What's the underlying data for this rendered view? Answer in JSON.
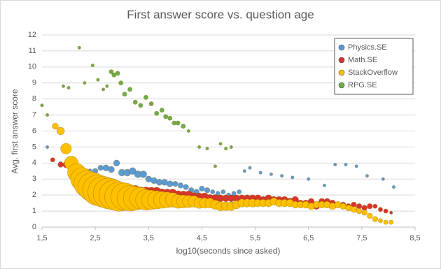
{
  "chart_data": {
    "type": "scatter",
    "title": "First answer score vs. question age",
    "x_label": "log10(seconds since asked)",
    "y_label": "Avg. first answer score",
    "xlim": [
      1.5,
      8.5
    ],
    "xticks": [
      {
        "value": 1.5,
        "label": "1,5"
      },
      {
        "value": 2.5,
        "label": "2,5"
      },
      {
        "value": 3.5,
        "label": "3,5"
      },
      {
        "value": 4.5,
        "label": "4,5"
      },
      {
        "value": 5.5,
        "label": "5,5"
      },
      {
        "value": 6.5,
        "label": "6,5"
      },
      {
        "value": 7.5,
        "label": "7,5"
      },
      {
        "value": 8.5,
        "label": "8,5"
      }
    ],
    "ylim": [
      0,
      12
    ],
    "yticks": [
      0,
      1,
      2,
      3,
      4,
      5,
      6,
      7,
      8,
      9,
      10,
      11,
      12
    ],
    "grid": true,
    "legend": "top-right",
    "series": [
      {
        "name": "Physics.SE",
        "color": "#5b9bd5",
        "x": [
          1.6,
          1.85,
          2.05,
          2.4,
          2.5,
          2.6,
          2.7,
          2.8,
          2.9,
          3.0,
          3.1,
          3.2,
          3.3,
          3.4,
          3.5,
          3.6,
          3.7,
          3.8,
          3.9,
          4.0,
          4.1,
          4.2,
          4.3,
          4.4,
          4.5,
          4.6,
          4.7,
          4.8,
          4.9,
          5.0,
          5.1,
          5.2,
          5.3,
          5.4,
          5.6,
          5.8,
          6.0,
          6.2,
          6.5,
          6.8,
          7.0,
          7.2,
          7.4,
          7.6,
          7.9,
          8.1
        ],
        "values": [
          5.0,
          4.0,
          3.7,
          3.5,
          3.5,
          3.7,
          3.7,
          3.6,
          4.0,
          3.4,
          3.4,
          3.5,
          3.3,
          3.3,
          3.0,
          2.9,
          2.8,
          2.8,
          2.7,
          2.7,
          2.6,
          2.5,
          2.3,
          2.2,
          2.4,
          2.3,
          2.2,
          2.1,
          2.2,
          2.0,
          2.1,
          2.2,
          3.5,
          3.7,
          3.4,
          3.3,
          3.2,
          3.1,
          3.0,
          2.6,
          3.9,
          3.9,
          3.8,
          3.2,
          3.0,
          2.5
        ],
        "sizes": [
          1,
          1,
          2,
          2,
          3,
          3,
          4,
          4,
          4,
          5,
          5,
          5,
          5,
          5,
          4,
          4,
          4,
          4,
          4,
          3,
          3,
          3,
          3,
          3,
          3,
          3,
          2,
          2,
          2,
          2,
          2,
          2,
          1,
          1,
          1,
          1,
          1,
          1,
          1,
          1,
          1,
          1,
          1,
          1,
          1,
          1
        ]
      },
      {
        "name": "Math.SE",
        "color": "#d9342b",
        "x": [
          1.7,
          1.85,
          1.95,
          2.05,
          2.15,
          2.25,
          2.35,
          2.45,
          2.55,
          2.65,
          2.75,
          2.85,
          2.95,
          3.05,
          3.15,
          3.25,
          3.35,
          3.45,
          3.55,
          3.65,
          3.75,
          3.85,
          3.95,
          4.05,
          4.15,
          4.25,
          4.35,
          4.45,
          4.55,
          4.65,
          4.75,
          4.85,
          4.95,
          5.05,
          5.15,
          5.25,
          5.35,
          5.45,
          5.55,
          5.65,
          5.75,
          5.85,
          5.95,
          6.05,
          6.15,
          6.25,
          6.35,
          6.45,
          6.55,
          6.65,
          6.75,
          6.85,
          6.95,
          7.05,
          7.15,
          7.25,
          7.35,
          7.45,
          7.55,
          7.65,
          7.75,
          7.85,
          7.95,
          8.05
        ],
        "values": [
          4.2,
          3.9,
          3.9,
          4.0,
          3.0,
          2.9,
          2.8,
          2.7,
          2.6,
          2.5,
          2.5,
          2.4,
          2.4,
          2.3,
          2.3,
          2.3,
          2.2,
          2.2,
          2.2,
          2.2,
          2.1,
          2.1,
          2.1,
          2.0,
          2.0,
          2.0,
          1.9,
          1.9,
          1.9,
          1.8,
          1.8,
          1.8,
          1.8,
          1.8,
          1.8,
          1.8,
          1.8,
          1.8,
          1.8,
          1.7,
          1.8,
          1.7,
          1.7,
          1.7,
          1.6,
          1.7,
          1.5,
          1.5,
          1.6,
          1.3,
          1.6,
          1.6,
          1.5,
          1.4,
          1.4,
          1.3,
          1.4,
          1.3,
          1.2,
          1.3,
          1.3,
          1.1,
          1.0,
          0.9
        ],
        "sizes": [
          2,
          3,
          4,
          5,
          7,
          9,
          10,
          11,
          12,
          12,
          12,
          12,
          12,
          11,
          11,
          10,
          10,
          10,
          9,
          9,
          9,
          8,
          8,
          8,
          7,
          7,
          7,
          6,
          6,
          6,
          6,
          5,
          5,
          5,
          5,
          5,
          5,
          5,
          5,
          5,
          5,
          5,
          5,
          5,
          5,
          5,
          4,
          4,
          4,
          4,
          4,
          4,
          4,
          4,
          3,
          3,
          3,
          3,
          3,
          3,
          2,
          2,
          2,
          1
        ]
      },
      {
        "name": "StackOverflow",
        "color": "#ffc000",
        "x": [
          1.75,
          1.85,
          1.95,
          2.05,
          2.15,
          2.25,
          2.35,
          2.45,
          2.55,
          2.65,
          2.75,
          2.85,
          2.95,
          3.05,
          3.15,
          3.25,
          3.35,
          3.45,
          3.55,
          3.65,
          3.75,
          3.85,
          3.95,
          4.05,
          4.15,
          4.25,
          4.35,
          4.45,
          4.55,
          4.65,
          4.75,
          4.85,
          4.95,
          5.05,
          5.15,
          5.25,
          5.35,
          5.45,
          5.55,
          5.65,
          5.75,
          5.85,
          5.95,
          6.05,
          6.15,
          6.25,
          6.35,
          6.45,
          6.55,
          6.65,
          6.75,
          6.85,
          6.95,
          7.05,
          7.15,
          7.25,
          7.35,
          7.45,
          7.55,
          7.65,
          7.75,
          7.85,
          7.95,
          8.05
        ],
        "values": [
          6.3,
          6.0,
          4.9,
          4.0,
          3.4,
          3.0,
          2.7,
          2.5,
          2.3,
          2.2,
          2.1,
          2.0,
          1.9,
          1.9,
          1.8,
          1.8,
          1.8,
          1.7,
          1.7,
          1.7,
          1.7,
          1.7,
          1.7,
          1.6,
          1.6,
          1.6,
          1.6,
          1.5,
          1.5,
          1.5,
          1.4,
          1.3,
          1.3,
          1.3,
          1.4,
          1.5,
          1.5,
          1.5,
          1.5,
          1.5,
          1.5,
          1.6,
          1.5,
          1.5,
          1.5,
          1.4,
          1.4,
          1.4,
          1.3,
          1.4,
          1.4,
          1.4,
          1.3,
          1.4,
          1.3,
          1.2,
          1.1,
          1.0,
          0.9,
          0.7,
          0.5,
          0.4,
          0.3,
          0.3
        ],
        "sizes": [
          4,
          6,
          12,
          20,
          35,
          55,
          75,
          90,
          100,
          100,
          100,
          95,
          90,
          80,
          70,
          60,
          50,
          45,
          40,
          35,
          30,
          26,
          22,
          20,
          18,
          16,
          14,
          12,
          11,
          10,
          9,
          9,
          8,
          8,
          7,
          7,
          7,
          7,
          6,
          6,
          6,
          6,
          6,
          6,
          6,
          5,
          5,
          5,
          5,
          5,
          5,
          5,
          5,
          4,
          4,
          4,
          4,
          3,
          3,
          3,
          3,
          2,
          2,
          2
        ]
      },
      {
        "name": "RPG.SE",
        "color": "#70ad47",
        "x": [
          1.5,
          1.6,
          1.9,
          2.0,
          2.2,
          2.3,
          2.45,
          2.55,
          2.65,
          2.72,
          2.8,
          2.85,
          2.92,
          2.98,
          3.05,
          3.15,
          3.25,
          3.35,
          3.45,
          3.55,
          3.65,
          3.75,
          3.82,
          3.9,
          3.98,
          4.05,
          4.15,
          4.25,
          4.45,
          4.6,
          4.75,
          4.85,
          4.95,
          5.05
        ],
        "values": [
          7.6,
          7.0,
          8.8,
          8.7,
          11.2,
          9.0,
          10.1,
          9.2,
          8.6,
          8.8,
          9.7,
          9.5,
          9.6,
          9.0,
          8.3,
          8.6,
          7.8,
          7.6,
          8.1,
          7.7,
          7.1,
          7.3,
          6.9,
          6.8,
          6.5,
          6.5,
          6.3,
          6.0,
          5.0,
          4.9,
          3.8,
          5.2,
          4.9,
          5.0
        ],
        "sizes": [
          1,
          1,
          1,
          1,
          1,
          1,
          1,
          1,
          1,
          1,
          2,
          2,
          2,
          2,
          2,
          2,
          2,
          2,
          2,
          2,
          2,
          2,
          2,
          2,
          2,
          2,
          2,
          1,
          1,
          1,
          1,
          1,
          1,
          1
        ]
      }
    ]
  }
}
